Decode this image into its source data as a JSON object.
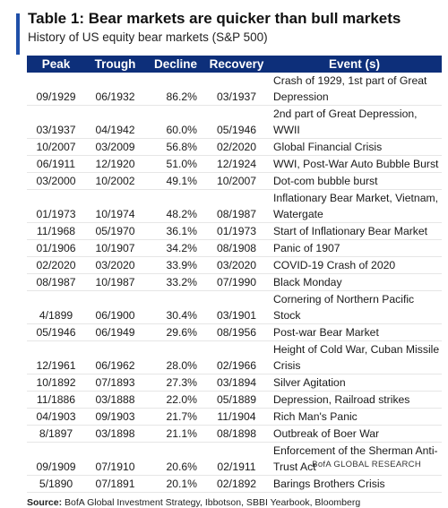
{
  "header": {
    "title": "Table 1: Bear markets are quicker than bull markets",
    "subtitle": "History of US equity bear markets (S&P 500)"
  },
  "table": {
    "columns": [
      "Peak",
      "Trough",
      "Decline",
      "Recovery",
      "Event (s)"
    ],
    "rows": [
      {
        "peak": "09/1929",
        "trough": "06/1932",
        "decline": "86.2%",
        "recovery": "03/1937",
        "event": [
          "Crash of 1929, 1st part of Great",
          "Depression"
        ]
      },
      {
        "peak": "03/1937",
        "trough": "04/1942",
        "decline": "60.0%",
        "recovery": "05/1946",
        "event": [
          "2nd part of Great Depression, WWII"
        ]
      },
      {
        "peak": "10/2007",
        "trough": "03/2009",
        "decline": "56.8%",
        "recovery": "02/2020",
        "event": [
          "Global Financial Crisis"
        ]
      },
      {
        "peak": "06/1911",
        "trough": "12/1920",
        "decline": "51.0%",
        "recovery": "12/1924",
        "event": [
          "WWI, Post-War Auto Bubble Burst"
        ]
      },
      {
        "peak": "03/2000",
        "trough": "10/2002",
        "decline": "49.1%",
        "recovery": "10/2007",
        "event": [
          "Dot-com bubble burst"
        ]
      },
      {
        "peak": "01/1973",
        "trough": "10/1974",
        "decline": "48.2%",
        "recovery": "08/1987",
        "event": [
          "Inflationary Bear Market, Vietnam,",
          "Watergate"
        ]
      },
      {
        "peak": "11/1968",
        "trough": "05/1970",
        "decline": "36.1%",
        "recovery": "01/1973",
        "event": [
          "Start of Inflationary Bear Market"
        ]
      },
      {
        "peak": "01/1906",
        "trough": "10/1907",
        "decline": "34.2%",
        "recovery": "08/1908",
        "event": [
          "Panic of 1907"
        ]
      },
      {
        "peak": "02/2020",
        "trough": "03/2020",
        "decline": "33.9%",
        "recovery": "03/2020",
        "event": [
          "COVID-19 Crash of 2020"
        ]
      },
      {
        "peak": "08/1987",
        "trough": "10/1987",
        "decline": "33.2%",
        "recovery": "07/1990",
        "event": [
          "Black Monday"
        ]
      },
      {
        "peak": "4/1899",
        "trough": "06/1900",
        "decline": "30.4%",
        "recovery": "03/1901",
        "event": [
          "Cornering of Northern Pacific Stock"
        ]
      },
      {
        "peak": "05/1946",
        "trough": "06/1949",
        "decline": "29.6%",
        "recovery": "08/1956",
        "event": [
          "Post-war Bear Market"
        ]
      },
      {
        "peak": "12/1961",
        "trough": "06/1962",
        "decline": "28.0%",
        "recovery": "02/1966",
        "event": [
          "Height of Cold War, Cuban Missile",
          "Crisis"
        ]
      },
      {
        "peak": "10/1892",
        "trough": "07/1893",
        "decline": "27.3%",
        "recovery": "03/1894",
        "event": [
          "Silver Agitation"
        ]
      },
      {
        "peak": "11/1886",
        "trough": "03/1888",
        "decline": "22.0%",
        "recovery": "05/1889",
        "event": [
          "Depression, Railroad strikes"
        ]
      },
      {
        "peak": "04/1903",
        "trough": "09/1903",
        "decline": "21.7%",
        "recovery": "11/1904",
        "event": [
          "Rich Man's Panic"
        ]
      },
      {
        "peak": "8/1897",
        "trough": "03/1898",
        "decline": "21.1%",
        "recovery": "08/1898",
        "event": [
          "Outbreak of Boer War"
        ]
      },
      {
        "peak": "09/1909",
        "trough": "07/1910",
        "decline": "20.6%",
        "recovery": "02/1911",
        "event": [
          "Enforcement of the Sherman Anti-",
          "Trust Act"
        ]
      },
      {
        "peak": "5/1890",
        "trough": "07/1891",
        "decline": "20.1%",
        "recovery": "02/1892",
        "event": [
          "Barings Brothers Crisis"
        ]
      }
    ]
  },
  "footer": {
    "source_label": "Source:",
    "source_text": "BofA Global Investment Strategy, Ibbotson, SBBI Yearbook, Bloomberg",
    "brand": "BofA GLOBAL RESEARCH"
  },
  "colors": {
    "header_bg": "#0d2f7a",
    "accent_bar": "#1f4fa8"
  }
}
